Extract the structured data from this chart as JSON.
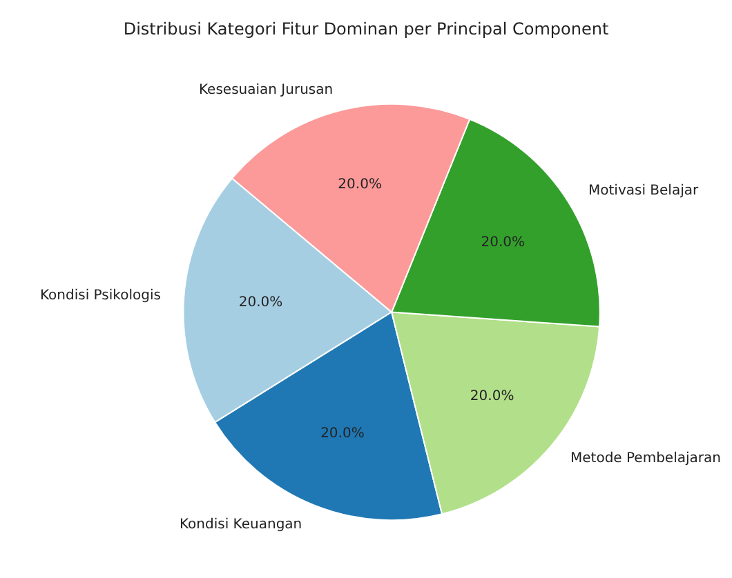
{
  "chart_data": {
    "type": "pie",
    "title": "Distribusi Kategori Fitur Dominan per Principal Component",
    "categories": [
      "Kondisi Psikologis",
      "Kondisi Keuangan",
      "Metode Pembelajaran",
      "Motivasi Belajar",
      "Kesesuaian Jurusan"
    ],
    "values": [
      20.0,
      20.0,
      20.0,
      20.0,
      20.0
    ],
    "value_labels": [
      "20.0%",
      "20.0%",
      "20.0%",
      "20.0%",
      "20.0%"
    ],
    "colors": [
      "#a6cee3",
      "#1f78b4",
      "#b2df8a",
      "#33a02c",
      "#fb9a99"
    ]
  }
}
